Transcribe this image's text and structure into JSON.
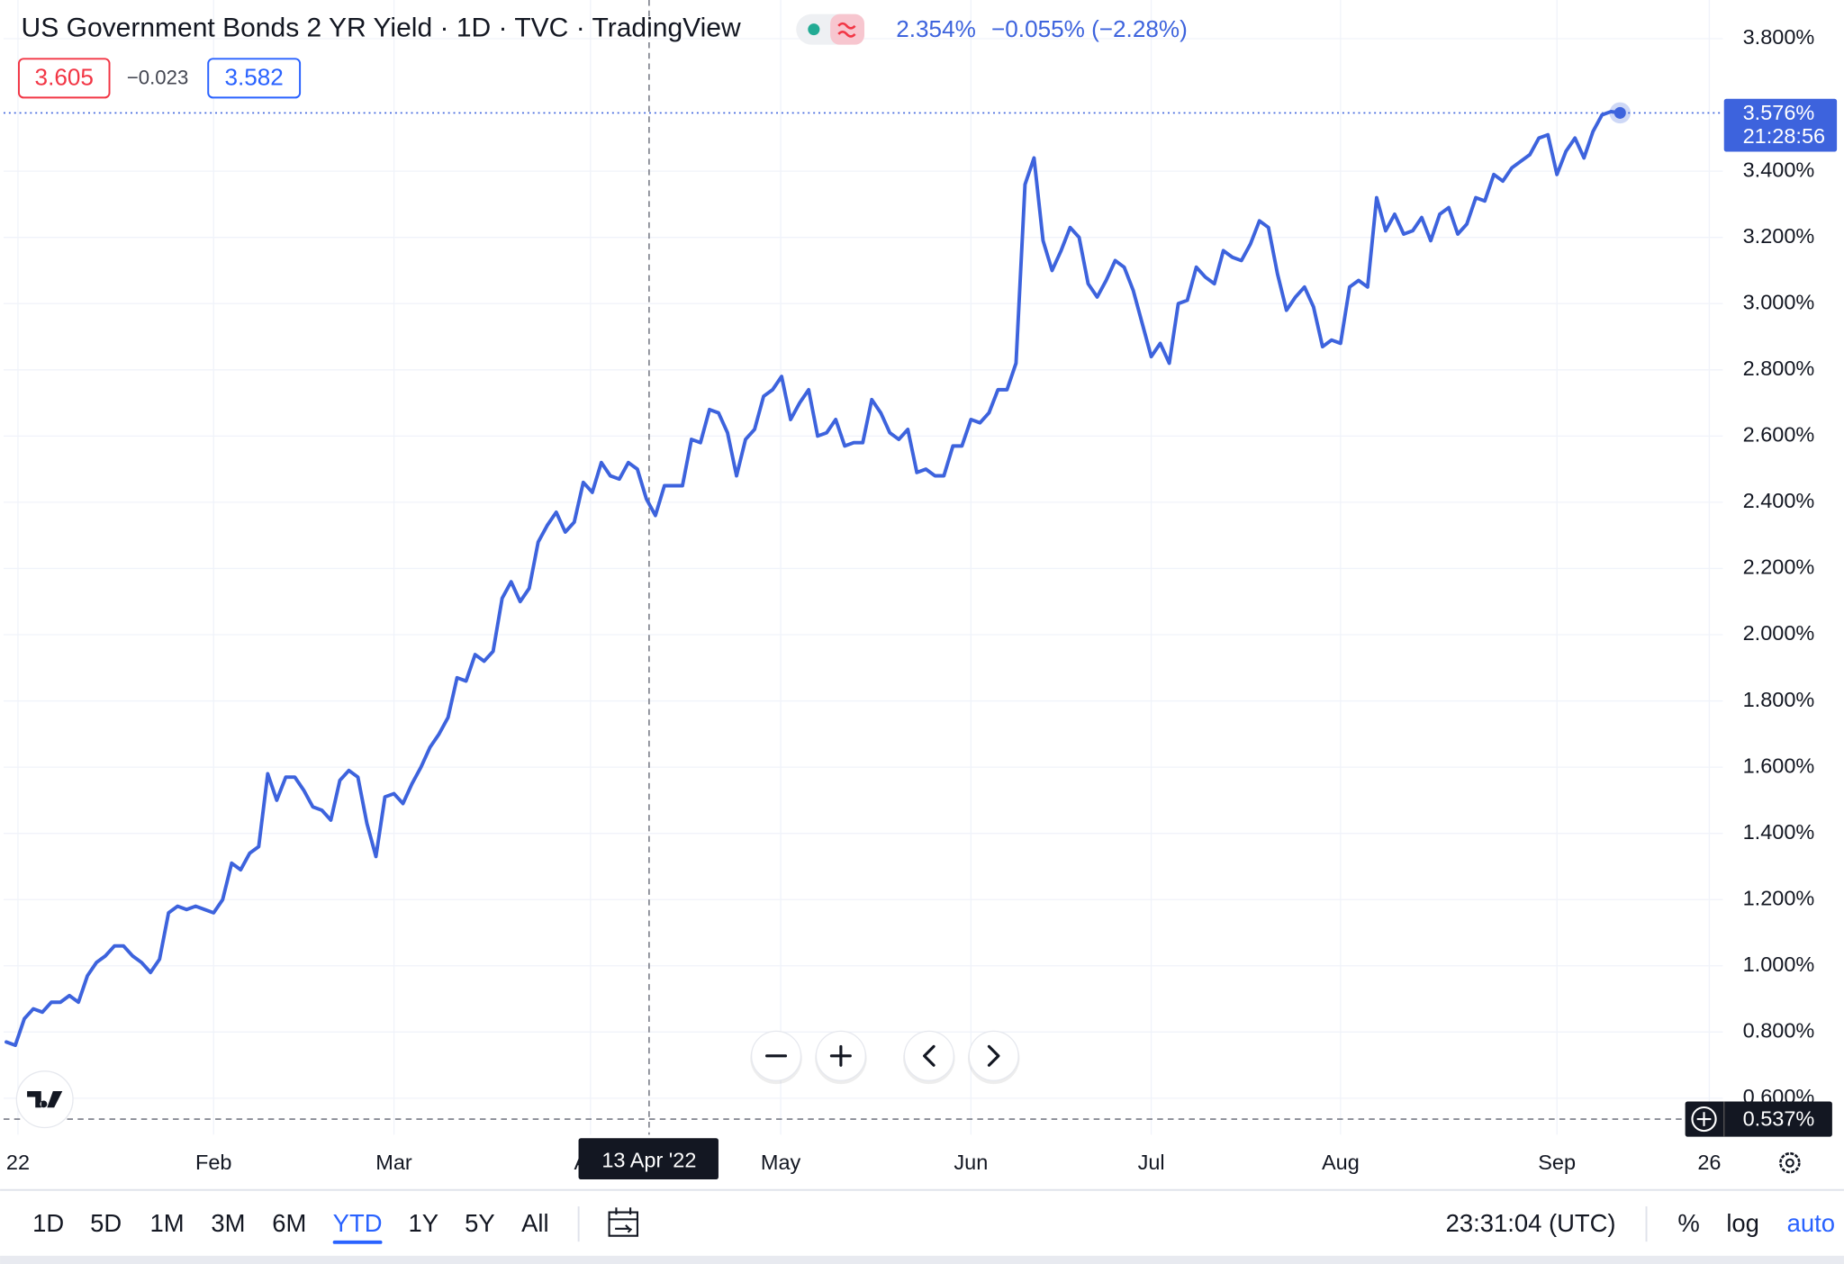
{
  "chart_data": {
    "type": "line",
    "title": "US Government Bonds 2 YR Yield · 1D · TVC · TradingView",
    "readout": {
      "value": "2.354%",
      "change": "−0.055% (−2.28%)"
    },
    "quote": {
      "sell": "3.605",
      "spread": "−0.023",
      "buy": "3.582"
    },
    "color": "#3d63dd",
    "values": [
      0.77,
      0.76,
      0.84,
      0.87,
      0.86,
      0.89,
      0.89,
      0.91,
      0.89,
      0.97,
      1.01,
      1.03,
      1.06,
      1.06,
      1.03,
      1.01,
      0.98,
      1.02,
      1.16,
      1.18,
      1.17,
      1.18,
      1.17,
      1.16,
      1.2,
      1.31,
      1.29,
      1.34,
      1.36,
      1.58,
      1.5,
      1.57,
      1.57,
      1.53,
      1.48,
      1.47,
      1.44,
      1.56,
      1.59,
      1.57,
      1.43,
      1.33,
      1.51,
      1.52,
      1.49,
      1.55,
      1.6,
      1.66,
      1.7,
      1.75,
      1.87,
      1.86,
      1.94,
      1.92,
      1.95,
      2.11,
      2.16,
      2.1,
      2.14,
      2.28,
      2.33,
      2.37,
      2.31,
      2.34,
      2.46,
      2.43,
      2.52,
      2.48,
      2.47,
      2.52,
      2.5,
      2.41,
      2.36,
      2.45,
      2.45,
      2.45,
      2.59,
      2.58,
      2.68,
      2.67,
      2.61,
      2.48,
      2.59,
      2.62,
      2.72,
      2.74,
      2.78,
      2.65,
      2.7,
      2.74,
      2.6,
      2.61,
      2.65,
      2.57,
      2.58,
      2.58,
      2.71,
      2.67,
      2.61,
      2.59,
      2.62,
      2.49,
      2.5,
      2.48,
      2.48,
      2.57,
      2.57,
      2.65,
      2.64,
      2.67,
      2.74,
      2.74,
      2.82,
      3.36,
      3.44,
      3.19,
      3.1,
      3.16,
      3.23,
      3.2,
      3.06,
      3.02,
      3.07,
      3.13,
      3.11,
      3.04,
      2.94,
      2.84,
      2.88,
      2.82,
      3.0,
      3.01,
      3.11,
      3.08,
      3.06,
      3.16,
      3.14,
      3.13,
      3.18,
      3.25,
      3.23,
      3.09,
      2.98,
      3.02,
      3.05,
      2.99,
      2.87,
      2.89,
      2.88,
      3.05,
      3.07,
      3.05,
      3.32,
      3.22,
      3.27,
      3.21,
      3.22,
      3.26,
      3.19,
      3.27,
      3.29,
      3.21,
      3.24,
      3.32,
      3.31,
      3.39,
      3.37,
      3.41,
      3.43,
      3.45,
      3.5,
      3.51,
      3.39,
      3.46,
      3.5,
      3.44,
      3.52,
      3.57,
      3.58,
      3.576
    ],
    "xlim": [
      -0.3,
      190.4
    ],
    "xticks": [
      {
        "value": 1.3,
        "label": "22"
      },
      {
        "value": 23,
        "label": "Feb"
      },
      {
        "value": 43,
        "label": "Mar"
      },
      {
        "value": 64.8,
        "label": "Apr"
      },
      {
        "value": 85.9,
        "label": "May"
      },
      {
        "value": 107,
        "label": "Jun"
      },
      {
        "value": 127,
        "label": "Jul"
      },
      {
        "value": 148,
        "label": "Aug"
      },
      {
        "value": 172,
        "label": "Sep"
      },
      {
        "value": 188.9,
        "label": "26"
      }
    ],
    "ylim": [
      0.49,
      3.917
    ],
    "yticks": [
      {
        "value": 3.8,
        "label": "3.800%"
      },
      {
        "value": 3.4,
        "label": "3.400%"
      },
      {
        "value": 3.2,
        "label": "3.200%"
      },
      {
        "value": 3.0,
        "label": "3.000%"
      },
      {
        "value": 2.8,
        "label": "2.800%"
      },
      {
        "value": 2.6,
        "label": "2.600%"
      },
      {
        "value": 2.4,
        "label": "2.400%"
      },
      {
        "value": 2.2,
        "label": "2.200%"
      },
      {
        "value": 2.0,
        "label": "2.000%"
      },
      {
        "value": 1.8,
        "label": "1.800%"
      },
      {
        "value": 1.6,
        "label": "1.600%"
      },
      {
        "value": 1.4,
        "label": "1.400%"
      },
      {
        "value": 1.2,
        "label": "1.200%"
      },
      {
        "value": 1.0,
        "label": "1.000%"
      },
      {
        "value": 0.8,
        "label": "0.800%"
      },
      {
        "value": 0.6,
        "label": "0.600%"
      }
    ],
    "grid": true,
    "last_price": {
      "value": 3.576,
      "label": "3.576%",
      "countdown": "21:28:56"
    },
    "crosshair": {
      "x": 71.3,
      "date_label": "13 Apr '22",
      "y": {
        "value": 0.537,
        "label": "0.537%"
      }
    },
    "toolbar": {
      "ranges": [
        "1D",
        "5D",
        "1M",
        "3M",
        "6M",
        "YTD",
        "1Y",
        "5Y",
        "All"
      ],
      "active_range": 5,
      "clock": "23:31:04 (UTC)",
      "scale_options": [
        "%",
        "log",
        "auto"
      ],
      "active_scale_option": 2
    }
  }
}
